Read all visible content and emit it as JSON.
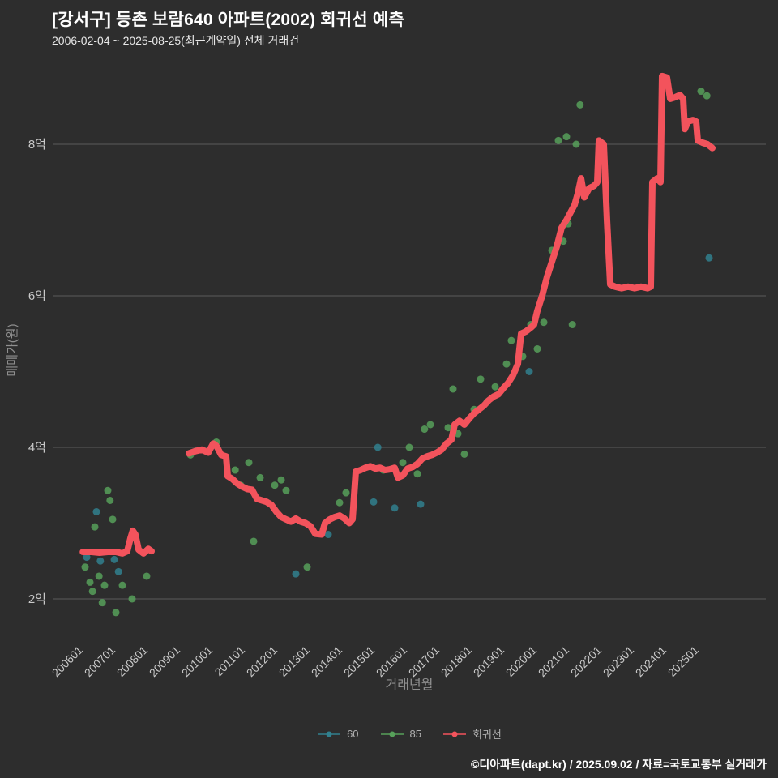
{
  "header": {
    "title": "[강서구] 등촌 보람640 아파트(2002) 회귀선 예측",
    "subtitle": "2006-02-04 ~ 2025-08-25(최근계약일) 전체 거래건"
  },
  "footer": {
    "credit": "©디아파트(dapt.kr) / 2025.09.02 / 자료=국토교통부 실거래가"
  },
  "colors": {
    "background": "#2d2d2d",
    "grid": "#5c5c5c",
    "tick": "#c9c9c9",
    "axisTitle": "#8f8f8f",
    "title": "#ffffff",
    "subtitle": "#e8e8e8",
    "legendText": "#b0b0b0",
    "series60": "#31808e",
    "series85": "#57a05a",
    "regression": "#f3535c"
  },
  "chart_data": {
    "type": "scatter",
    "title": "[강서구] 등촌 보람640 아파트(2002) 회귀선 예측",
    "xlabel": "거래년월",
    "ylabel": "매매가(원)",
    "y_unit": "억",
    "x_ticks": [
      "200601",
      "200701",
      "200801",
      "200901",
      "201001",
      "201101",
      "201201",
      "201301",
      "201401",
      "201501",
      "201601",
      "201701",
      "201801",
      "201901",
      "202001",
      "202101",
      "202201",
      "202301",
      "202401",
      "202501"
    ],
    "y_ticks": [
      {
        "value": 2,
        "label": "2억"
      },
      {
        "value": 4,
        "label": "4억"
      },
      {
        "value": 6,
        "label": "6억"
      },
      {
        "value": 8,
        "label": "8억"
      }
    ],
    "legend_position": "bottom",
    "series": [
      {
        "name": "60",
        "type": "scatter",
        "color": "#31808e",
        "points": [
          [
            2006.2,
            2.55
          ],
          [
            2006.5,
            3.15
          ],
          [
            2006.62,
            2.5
          ],
          [
            2007.05,
            2.52
          ],
          [
            2007.18,
            2.36
          ],
          [
            2012.65,
            2.33
          ],
          [
            2013.65,
            2.85
          ],
          [
            2015.05,
            3.28
          ],
          [
            2015.18,
            4.0
          ],
          [
            2015.7,
            3.2
          ],
          [
            2016.5,
            3.25
          ],
          [
            2019.85,
            5.0
          ],
          [
            2025.4,
            6.5
          ]
        ]
      },
      {
        "name": "85",
        "type": "scatter",
        "color": "#57a05a",
        "points": [
          [
            2006.15,
            2.42
          ],
          [
            2006.3,
            2.22
          ],
          [
            2006.38,
            2.1
          ],
          [
            2006.45,
            2.95
          ],
          [
            2006.58,
            2.3
          ],
          [
            2006.68,
            1.95
          ],
          [
            2006.75,
            2.18
          ],
          [
            2006.85,
            3.43
          ],
          [
            2006.92,
            3.3
          ],
          [
            2007.0,
            3.05
          ],
          [
            2007.1,
            1.82
          ],
          [
            2007.3,
            2.18
          ],
          [
            2007.6,
            2.0
          ],
          [
            2008.05,
            2.3
          ],
          [
            2009.4,
            3.9
          ],
          [
            2010.2,
            4.07
          ],
          [
            2010.78,
            3.7
          ],
          [
            2010.95,
            3.5
          ],
          [
            2011.2,
            3.8
          ],
          [
            2011.35,
            2.76
          ],
          [
            2011.55,
            3.6
          ],
          [
            2012.0,
            3.5
          ],
          [
            2012.2,
            3.57
          ],
          [
            2012.35,
            3.43
          ],
          [
            2013.0,
            2.42
          ],
          [
            2014.0,
            3.27
          ],
          [
            2014.2,
            3.4
          ],
          [
            2015.35,
            3.7
          ],
          [
            2015.95,
            3.8
          ],
          [
            2016.15,
            4.0
          ],
          [
            2016.4,
            3.65
          ],
          [
            2016.62,
            4.24
          ],
          [
            2016.8,
            4.3
          ],
          [
            2017.35,
            4.26
          ],
          [
            2017.5,
            4.77
          ],
          [
            2017.65,
            4.18
          ],
          [
            2017.85,
            3.91
          ],
          [
            2018.15,
            4.5
          ],
          [
            2018.35,
            4.9
          ],
          [
            2018.55,
            4.6
          ],
          [
            2018.8,
            4.8
          ],
          [
            2019.15,
            5.1
          ],
          [
            2019.3,
            5.41
          ],
          [
            2019.65,
            5.2
          ],
          [
            2019.9,
            5.62
          ],
          [
            2020.1,
            5.3
          ],
          [
            2020.3,
            5.65
          ],
          [
            2020.55,
            6.6
          ],
          [
            2020.75,
            8.05
          ],
          [
            2020.9,
            6.72
          ],
          [
            2021.0,
            8.1
          ],
          [
            2021.05,
            6.95
          ],
          [
            2021.18,
            5.62
          ],
          [
            2021.3,
            8.0
          ],
          [
            2021.42,
            8.52
          ],
          [
            2025.15,
            8.7
          ],
          [
            2025.33,
            8.64
          ]
        ]
      },
      {
        "name": "회귀선",
        "type": "line",
        "color": "#f3535c",
        "segments": [
          [
            [
              2006.08,
              2.62
            ],
            [
              2006.35,
              2.62
            ],
            [
              2006.6,
              2.61
            ],
            [
              2006.85,
              2.62
            ],
            [
              2007.1,
              2.62
            ],
            [
              2007.3,
              2.6
            ],
            [
              2007.45,
              2.63
            ],
            [
              2007.55,
              2.8
            ],
            [
              2007.62,
              2.9
            ],
            [
              2007.7,
              2.85
            ],
            [
              2007.8,
              2.65
            ],
            [
              2007.95,
              2.6
            ],
            [
              2008.1,
              2.66
            ],
            [
              2008.2,
              2.63
            ]
          ],
          [
            [
              2009.35,
              3.92
            ],
            [
              2009.55,
              3.95
            ],
            [
              2009.75,
              3.97
            ],
            [
              2009.95,
              3.93
            ],
            [
              2010.1,
              4.05
            ],
            [
              2010.2,
              4.02
            ],
            [
              2010.35,
              3.9
            ],
            [
              2010.5,
              3.88
            ],
            [
              2010.55,
              3.62
            ],
            [
              2010.7,
              3.58
            ],
            [
              2010.85,
              3.52
            ],
            [
              2011.0,
              3.48
            ],
            [
              2011.15,
              3.45
            ],
            [
              2011.3,
              3.44
            ],
            [
              2011.45,
              3.32
            ],
            [
              2011.6,
              3.3
            ],
            [
              2011.75,
              3.28
            ],
            [
              2011.9,
              3.24
            ],
            [
              2012.05,
              3.15
            ],
            [
              2012.2,
              3.08
            ],
            [
              2012.35,
              3.05
            ],
            [
              2012.5,
              3.02
            ],
            [
              2012.65,
              3.06
            ],
            [
              2012.8,
              3.02
            ],
            [
              2012.95,
              3.0
            ],
            [
              2013.1,
              2.96
            ],
            [
              2013.25,
              2.86
            ],
            [
              2013.45,
              2.85
            ],
            [
              2013.55,
              3.0
            ],
            [
              2013.7,
              3.05
            ],
            [
              2013.85,
              3.08
            ],
            [
              2014.0,
              3.1
            ],
            [
              2014.15,
              3.06
            ],
            [
              2014.3,
              3.0
            ],
            [
              2014.4,
              3.05
            ],
            [
              2014.5,
              3.68
            ],
            [
              2014.65,
              3.7
            ],
            [
              2014.8,
              3.73
            ],
            [
              2014.95,
              3.75
            ],
            [
              2015.1,
              3.72
            ],
            [
              2015.25,
              3.73
            ],
            [
              2015.4,
              3.7
            ],
            [
              2015.55,
              3.71
            ],
            [
              2015.7,
              3.73
            ],
            [
              2015.8,
              3.6
            ],
            [
              2015.95,
              3.63
            ],
            [
              2016.1,
              3.72
            ],
            [
              2016.25,
              3.74
            ],
            [
              2016.4,
              3.78
            ],
            [
              2016.55,
              3.85
            ],
            [
              2016.7,
              3.88
            ],
            [
              2016.85,
              3.9
            ],
            [
              2017.0,
              3.93
            ],
            [
              2017.15,
              3.97
            ],
            [
              2017.3,
              4.05
            ],
            [
              2017.45,
              4.1
            ],
            [
              2017.55,
              4.3
            ],
            [
              2017.7,
              4.35
            ],
            [
              2017.85,
              4.3
            ],
            [
              2018.0,
              4.38
            ],
            [
              2018.15,
              4.45
            ],
            [
              2018.3,
              4.5
            ],
            [
              2018.45,
              4.55
            ],
            [
              2018.6,
              4.62
            ],
            [
              2018.75,
              4.67
            ],
            [
              2018.9,
              4.7
            ],
            [
              2019.05,
              4.78
            ],
            [
              2019.2,
              4.85
            ],
            [
              2019.35,
              4.95
            ],
            [
              2019.5,
              5.1
            ],
            [
              2019.6,
              5.5
            ],
            [
              2019.75,
              5.53
            ],
            [
              2019.9,
              5.58
            ],
            [
              2020.0,
              5.62
            ],
            [
              2020.1,
              5.8
            ],
            [
              2020.25,
              6.0
            ],
            [
              2020.4,
              6.25
            ],
            [
              2020.55,
              6.45
            ],
            [
              2020.7,
              6.65
            ],
            [
              2020.85,
              6.9
            ],
            [
              2021.0,
              7.0
            ],
            [
              2021.1,
              7.08
            ],
            [
              2021.25,
              7.2
            ],
            [
              2021.35,
              7.35
            ],
            [
              2021.45,
              7.55
            ],
            [
              2021.55,
              7.3
            ],
            [
              2021.7,
              7.42
            ],
            [
              2021.85,
              7.45
            ],
            [
              2021.95,
              7.5
            ],
            [
              2022.0,
              8.05
            ],
            [
              2022.15,
              8.0
            ],
            [
              2022.25,
              7.0
            ],
            [
              2022.35,
              6.15
            ],
            [
              2022.5,
              6.12
            ],
            [
              2022.7,
              6.1
            ],
            [
              2022.9,
              6.12
            ],
            [
              2023.1,
              6.1
            ],
            [
              2023.3,
              6.12
            ],
            [
              2023.5,
              6.1
            ],
            [
              2023.6,
              6.12
            ],
            [
              2023.65,
              7.5
            ],
            [
              2023.8,
              7.55
            ],
            [
              2023.9,
              7.5
            ],
            [
              2023.95,
              8.9
            ],
            [
              2024.1,
              8.88
            ],
            [
              2024.2,
              8.6
            ],
            [
              2024.35,
              8.62
            ],
            [
              2024.5,
              8.65
            ],
            [
              2024.6,
              8.6
            ],
            [
              2024.65,
              8.2
            ],
            [
              2024.75,
              8.3
            ],
            [
              2024.9,
              8.32
            ],
            [
              2025.0,
              8.3
            ],
            [
              2025.05,
              8.05
            ],
            [
              2025.2,
              8.02
            ],
            [
              2025.35,
              8.0
            ],
            [
              2025.5,
              7.95
            ]
          ]
        ]
      }
    ]
  }
}
